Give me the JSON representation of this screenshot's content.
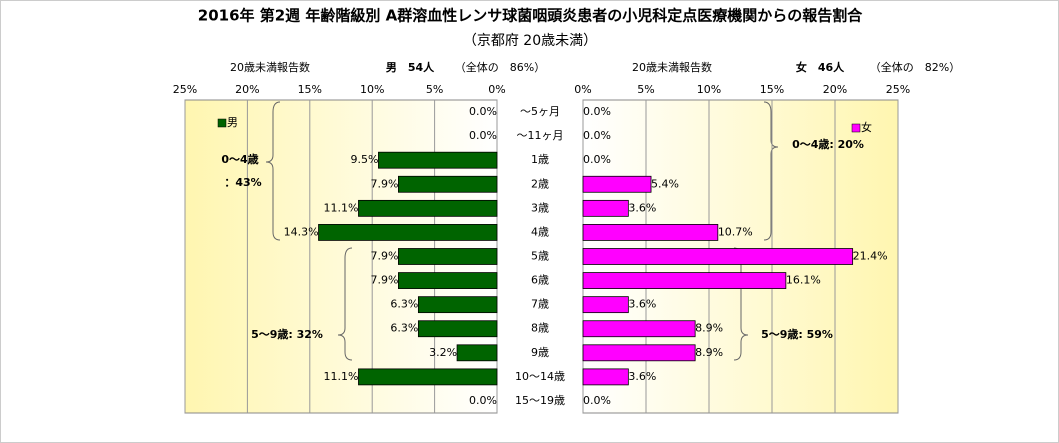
{
  "chart_data": {
    "type": "bar",
    "title": "2016年 第2週 年齢階級別 A群溶血性レンサ球菌咽頭炎患者の小児科定点医療機関からの報告割合",
    "subtitle": "（京都府 20歳未満）",
    "categories": [
      "～5ヶ月",
      "～11ヶ月",
      "1歳",
      "2歳",
      "3歳",
      "4歳",
      "5歳",
      "6歳",
      "7歳",
      "8歳",
      "9歳",
      "10～14歳",
      "15～19歳"
    ],
    "xlim": [
      0,
      25
    ],
    "xticks": [
      {
        "value": 0,
        "label": "0%"
      },
      {
        "value": 5,
        "label": "5%"
      },
      {
        "value": 10,
        "label": "10%"
      },
      {
        "value": 15,
        "label": "15%"
      },
      {
        "value": 20,
        "label": "20%"
      },
      {
        "value": 25,
        "label": "25%"
      }
    ],
    "grid": true,
    "series": [
      {
        "name": "男",
        "color": "#006400",
        "side": "left",
        "count_label": "20歳未満報告数",
        "total": "男　54人",
        "share": "（全体の　86%）",
        "values": [
          0,
          0,
          9.5,
          7.9,
          11.1,
          14.3,
          7.9,
          7.9,
          6.3,
          6.3,
          3.2,
          11.1,
          0
        ],
        "value_labels": [
          "0.0%",
          "0.0%",
          "9.5%",
          "7.9%",
          "11.1%",
          "14.3%",
          "7.9%",
          "7.9%",
          "6.3%",
          "6.3%",
          "3.2%",
          "11.1%",
          "0.0%"
        ],
        "annotations": [
          "0～4歳",
          "：43%",
          "5～9歳: 32%"
        ]
      },
      {
        "name": "女",
        "color": "#ff00ff",
        "side": "right",
        "count_label": "20歳未満報告数",
        "total": "女　46人",
        "share": "（全体の　82%）",
        "values": [
          0,
          0,
          0,
          5.4,
          3.6,
          10.7,
          21.4,
          16.1,
          3.6,
          8.9,
          8.9,
          3.6,
          0
        ],
        "value_labels": [
          "0.0%",
          "0.0%",
          "0.0%",
          "5.4%",
          "3.6%",
          "10.7%",
          "21.4%",
          "16.1%",
          "3.6%",
          "8.9%",
          "8.9%",
          "3.6%",
          "0.0%"
        ],
        "annotations": [
          "0～4歳: 20%",
          "5～9歳: 59%"
        ]
      }
    ]
  }
}
